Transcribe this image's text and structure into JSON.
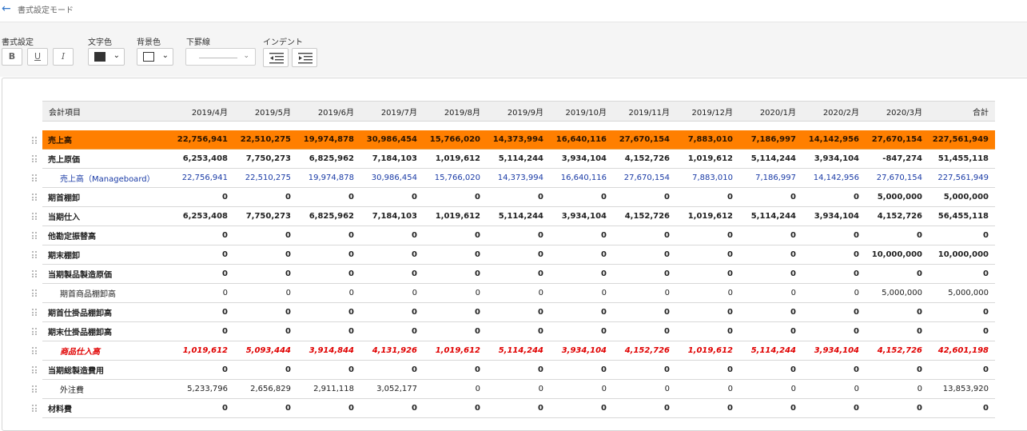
{
  "header": {
    "back_icon": "arrow-left-icon",
    "title": "書式設定モード"
  },
  "toolbar": {
    "format_label": "書式設定",
    "bold": "B",
    "underline": "U",
    "italic": "I",
    "text_color_label": "文字色",
    "text_color": "#333333",
    "bg_color_label": "背景色",
    "bg_color": "#ffffff",
    "border_label": "下罫線",
    "indent_label": "インデント"
  },
  "table": {
    "columns": [
      "会計項目",
      "2019/4月",
      "2019/5月",
      "2019/6月",
      "2019/7月",
      "2019/8月",
      "2019/9月",
      "2019/10月",
      "2019/11月",
      "2019/12月",
      "2020/1月",
      "2020/2月",
      "2020/3月",
      "合計"
    ],
    "rows": [
      {
        "style": "orange bold",
        "label": "売上高",
        "values": [
          "22,756,941",
          "22,510,275",
          "19,974,878",
          "30,986,454",
          "15,766,020",
          "14,373,994",
          "16,640,116",
          "27,670,154",
          "7,883,010",
          "7,186,997",
          "14,142,956",
          "27,670,154",
          "227,561,949"
        ]
      },
      {
        "style": "bold",
        "label": "売上原価",
        "values": [
          "6,253,408",
          "7,750,273",
          "6,825,962",
          "7,184,103",
          "1,019,612",
          "5,114,244",
          "3,934,104",
          "4,152,726",
          "1,019,612",
          "5,114,244",
          "3,934,104",
          "-847,274",
          "51,455,118"
        ]
      },
      {
        "style": "blue sub",
        "label": "売上高（Manageboard）",
        "values": [
          "22,756,941",
          "22,510,275",
          "19,974,878",
          "30,986,454",
          "15,766,020",
          "14,373,994",
          "16,640,116",
          "27,670,154",
          "7,883,010",
          "7,186,997",
          "14,142,956",
          "27,670,154",
          "227,561,949"
        ]
      },
      {
        "style": "bold",
        "label": "期首棚卸",
        "values": [
          "0",
          "0",
          "0",
          "0",
          "0",
          "0",
          "0",
          "0",
          "0",
          "0",
          "0",
          "5,000,000",
          "5,000,000"
        ]
      },
      {
        "style": "bold",
        "label": "当期仕入",
        "values": [
          "6,253,408",
          "7,750,273",
          "6,825,962",
          "7,184,103",
          "1,019,612",
          "5,114,244",
          "3,934,104",
          "4,152,726",
          "1,019,612",
          "5,114,244",
          "3,934,104",
          "4,152,726",
          "56,455,118"
        ]
      },
      {
        "style": "bold",
        "label": "他勘定振替高",
        "values": [
          "0",
          "0",
          "0",
          "0",
          "0",
          "0",
          "0",
          "0",
          "0",
          "0",
          "0",
          "0",
          "0"
        ]
      },
      {
        "style": "bold",
        "label": "期末棚卸",
        "values": [
          "0",
          "0",
          "0",
          "0",
          "0",
          "0",
          "0",
          "0",
          "0",
          "0",
          "0",
          "10,000,000",
          "10,000,000"
        ]
      },
      {
        "style": "bold",
        "label": "当期製品製造原価",
        "values": [
          "0",
          "0",
          "0",
          "0",
          "0",
          "0",
          "0",
          "0",
          "0",
          "0",
          "0",
          "0",
          "0"
        ]
      },
      {
        "style": "sub",
        "label": "期首商品棚卸高",
        "values": [
          "0",
          "0",
          "0",
          "0",
          "0",
          "0",
          "0",
          "0",
          "0",
          "0",
          "0",
          "5,000,000",
          "5,000,000"
        ]
      },
      {
        "style": "bold",
        "label": "期首仕掛品棚卸高",
        "values": [
          "0",
          "0",
          "0",
          "0",
          "0",
          "0",
          "0",
          "0",
          "0",
          "0",
          "0",
          "0",
          "0"
        ]
      },
      {
        "style": "bold",
        "label": "期末仕掛品棚卸高",
        "values": [
          "0",
          "0",
          "0",
          "0",
          "0",
          "0",
          "0",
          "0",
          "0",
          "0",
          "0",
          "0",
          "0"
        ]
      },
      {
        "style": "red sub",
        "label": "商品仕入高",
        "values": [
          "1,019,612",
          "5,093,444",
          "3,914,844",
          "4,131,926",
          "1,019,612",
          "5,114,244",
          "3,934,104",
          "4,152,726",
          "1,019,612",
          "5,114,244",
          "3,934,104",
          "4,152,726",
          "42,601,198"
        ]
      },
      {
        "style": "bold",
        "label": "当期総製造費用",
        "values": [
          "0",
          "0",
          "0",
          "0",
          "0",
          "0",
          "0",
          "0",
          "0",
          "0",
          "0",
          "0",
          "0"
        ]
      },
      {
        "style": "sub",
        "label": "外注費",
        "values": [
          "5,233,796",
          "2,656,829",
          "2,911,118",
          "3,052,177",
          "0",
          "0",
          "0",
          "0",
          "0",
          "0",
          "0",
          "0",
          "13,853,920"
        ]
      },
      {
        "style": "bold",
        "label": "材料費",
        "values": [
          "0",
          "0",
          "0",
          "0",
          "0",
          "0",
          "0",
          "0",
          "0",
          "0",
          "0",
          "0",
          "0"
        ]
      }
    ]
  }
}
